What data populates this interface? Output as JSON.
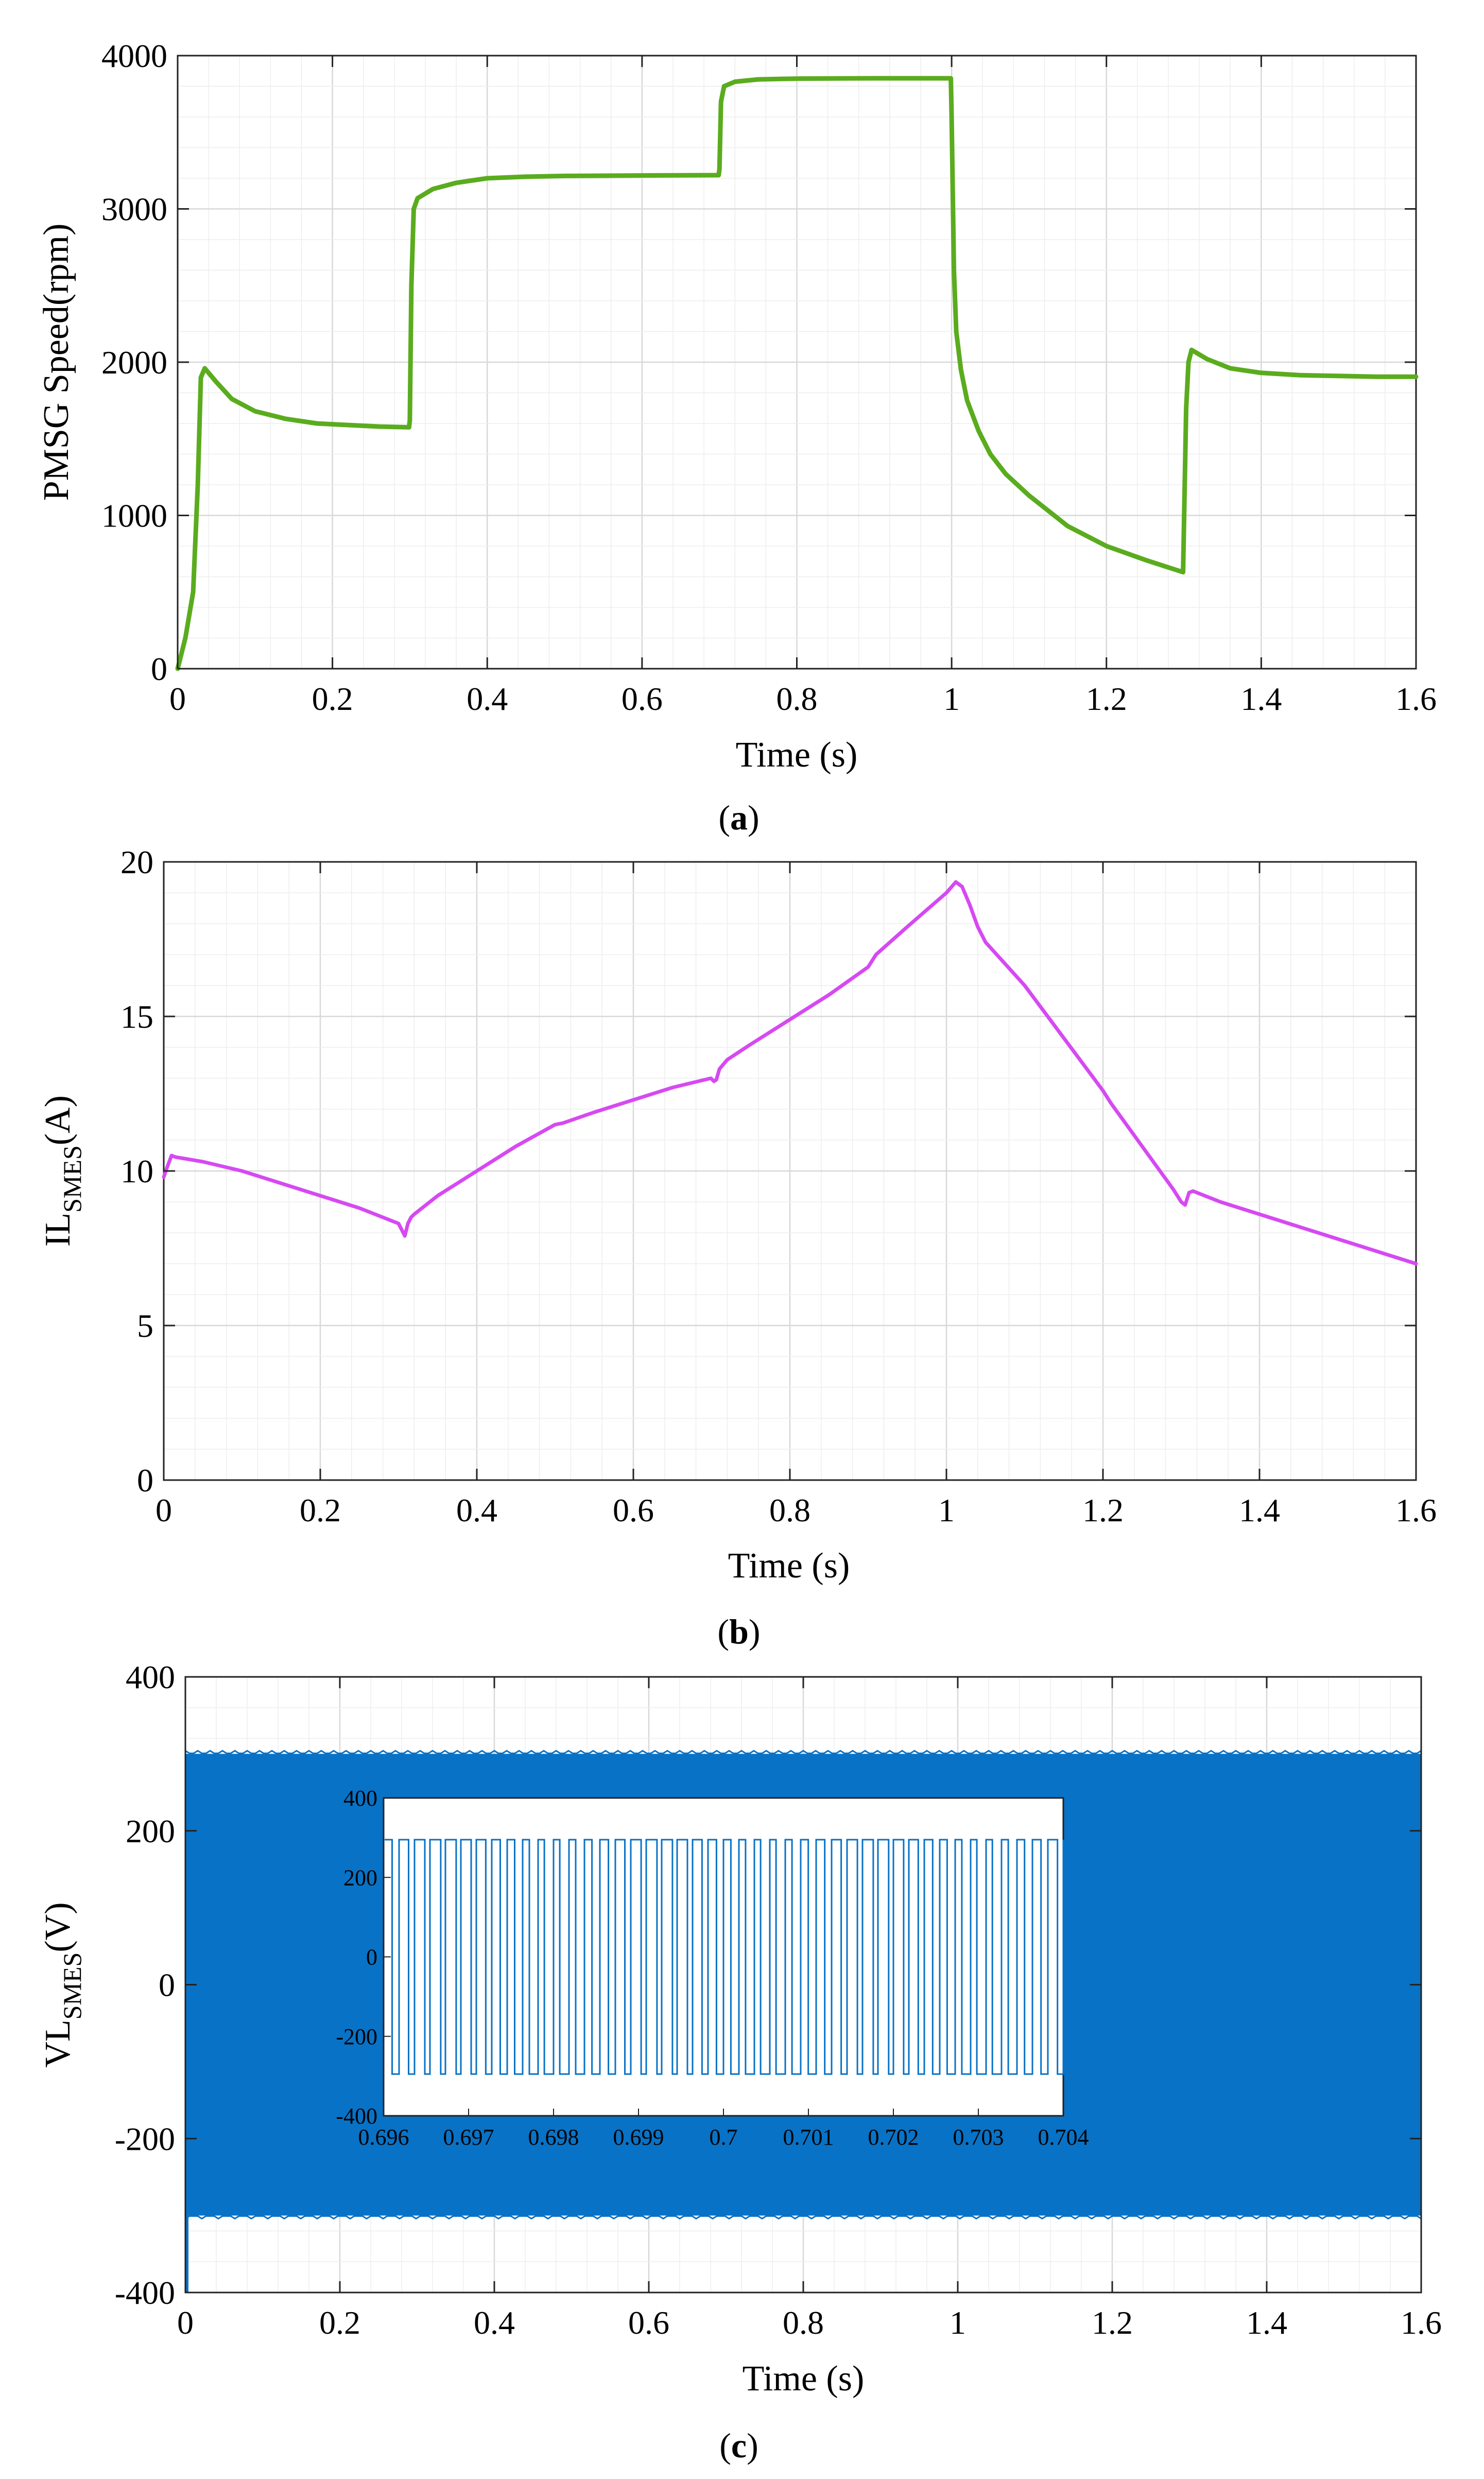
{
  "chart_data": [
    {
      "type": "line",
      "panel": "a",
      "caption_open": "(",
      "caption_letter": "a",
      "caption_close": ")",
      "xlabel": "Time (s)",
      "ylabel": "PMSG Speed(rpm)",
      "xlim": [
        0,
        1.6
      ],
      "ylim": [
        0,
        4000
      ],
      "xticks": [
        "0",
        "0.2",
        "0.4",
        "0.6",
        "0.8",
        "1",
        "1.2",
        "1.4",
        "1.6"
      ],
      "yticks": [
        "0",
        "1000",
        "2000",
        "3000",
        "4000"
      ],
      "grid": true,
      "color": "#5aac1e",
      "series": [
        {
          "name": "PMSG Speed",
          "x": [
            0,
            0.01,
            0.02,
            0.026,
            0.03,
            0.035,
            0.05,
            0.07,
            0.1,
            0.14,
            0.18,
            0.22,
            0.26,
            0.299,
            0.3,
            0.302,
            0.305,
            0.31,
            0.33,
            0.36,
            0.4,
            0.45,
            0.5,
            0.6,
            0.699,
            0.7,
            0.702,
            0.706,
            0.72,
            0.75,
            0.8,
            0.9,
            0.999,
            1.0,
            1.003,
            1.006,
            1.012,
            1.02,
            1.035,
            1.05,
            1.07,
            1.1,
            1.15,
            1.2,
            1.25,
            1.299,
            1.3,
            1.303,
            1.306,
            1.31,
            1.33,
            1.36,
            1.4,
            1.45,
            1.5,
            1.55,
            1.6
          ],
          "y": [
            0,
            200,
            500,
            1200,
            1900,
            1960,
            1870,
            1760,
            1680,
            1630,
            1600,
            1590,
            1580,
            1575,
            1620,
            2500,
            3000,
            3070,
            3130,
            3170,
            3200,
            3210,
            3215,
            3218,
            3220,
            3260,
            3700,
            3800,
            3830,
            3845,
            3850,
            3852,
            3852,
            3600,
            2600,
            2200,
            1950,
            1750,
            1550,
            1400,
            1270,
            1130,
            930,
            800,
            710,
            630,
            900,
            1700,
            2000,
            2080,
            2020,
            1960,
            1930,
            1915,
            1910,
            1905,
            1905
          ]
        }
      ]
    },
    {
      "type": "line",
      "panel": "b",
      "caption_open": "(",
      "caption_letter": "b",
      "caption_close": ")",
      "xlabel": "Time (s)",
      "ylabel_main": "IL",
      "ylabel_sub": "SMES",
      "ylabel_tail": "(A)",
      "xlim": [
        0,
        1.6
      ],
      "ylim": [
        0,
        20
      ],
      "xticks": [
        "0",
        "0.2",
        "0.4",
        "0.6",
        "0.8",
        "1",
        "1.2",
        "1.4",
        "1.6"
      ],
      "yticks": [
        "0",
        "5",
        "10",
        "15",
        "20"
      ],
      "grid": true,
      "color": "#d649f2",
      "series": [
        {
          "name": "IL_SMES",
          "x": [
            0,
            0.004,
            0.01,
            0.015,
            0.05,
            0.1,
            0.15,
            0.2,
            0.25,
            0.3,
            0.304,
            0.308,
            0.312,
            0.316,
            0.32,
            0.35,
            0.4,
            0.45,
            0.5,
            0.51,
            0.55,
            0.6,
            0.65,
            0.699,
            0.703,
            0.706,
            0.71,
            0.72,
            0.75,
            0.8,
            0.85,
            0.9,
            0.91,
            0.95,
            1.0,
            1.012,
            1.02,
            1.03,
            1.04,
            1.05,
            1.1,
            1.15,
            1.2,
            1.21,
            1.25,
            1.29,
            1.3,
            1.305,
            1.31,
            1.315,
            1.32,
            1.35,
            1.4,
            1.45,
            1.5,
            1.55,
            1.6
          ],
          "y": [
            9.8,
            10.1,
            10.5,
            10.45,
            10.3,
            10.0,
            9.6,
            9.2,
            8.8,
            8.3,
            8.1,
            7.9,
            8.3,
            8.5,
            8.6,
            9.2,
            10.0,
            10.8,
            11.5,
            11.55,
            11.9,
            12.3,
            12.7,
            13.0,
            12.9,
            12.95,
            13.3,
            13.6,
            14.1,
            14.9,
            15.7,
            16.6,
            17.0,
            17.9,
            19.0,
            19.35,
            19.2,
            18.6,
            17.9,
            17.4,
            16.0,
            14.3,
            12.6,
            12.2,
            10.8,
            9.4,
            9.0,
            8.9,
            9.3,
            9.35,
            9.3,
            9.0,
            8.6,
            8.2,
            7.8,
            7.4,
            7.0
          ]
        }
      ]
    },
    {
      "type": "line",
      "panel": "c",
      "caption_open": "(",
      "caption_letter": "c",
      "caption_close": ")",
      "xlabel": "Time (s)",
      "ylabel_main": "VL",
      "ylabel_sub": "SMES",
      "ylabel_tail": "(V)",
      "xlim": [
        0,
        1.6
      ],
      "ylim": [
        -400,
        400
      ],
      "xticks": [
        "0",
        "0.2",
        "0.4",
        "0.6",
        "0.8",
        "1",
        "1.2",
        "1.4",
        "1.6"
      ],
      "yticks": [
        "-400",
        "-200",
        "0",
        "200",
        "400"
      ],
      "grid": true,
      "color": "#0872c6",
      "series": [
        {
          "name": "VL_SMES",
          "description_values": {
            "high": 300,
            "low": -300,
            "x_start": 0,
            "x_end": 1.6
          }
        }
      ],
      "inset": {
        "xlim": [
          0.696,
          0.704
        ],
        "ylim": [
          -400,
          400
        ],
        "xticks": [
          "0.696",
          "0.697",
          "0.698",
          "0.699",
          "0.7",
          "0.701",
          "0.702",
          "0.703",
          "0.704"
        ],
        "yticks": [
          "-400",
          "-200",
          "0",
          "200",
          "400"
        ],
        "high": 295,
        "low": -295,
        "pulse_count": 44
      }
    }
  ]
}
